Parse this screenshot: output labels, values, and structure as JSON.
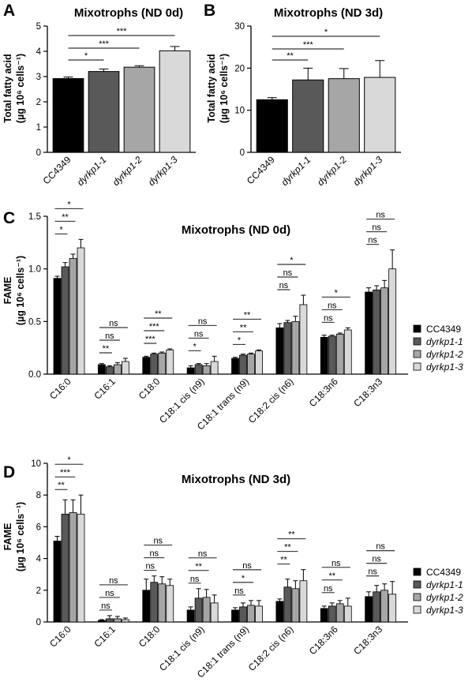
{
  "colors": {
    "CC4349": "#000000",
    "dyrkp1-1": "#595959",
    "dyrkp1-2": "#a6a6a6",
    "dyrkp1-3": "#d9d9d9"
  },
  "legend": [
    "CC4349",
    "dyrkp1-1",
    "dyrkp1-2",
    "dyrkp1-3"
  ],
  "chart_data": [
    {
      "id": "A",
      "type": "bar",
      "panel_letter": "A",
      "title": "Mixotrophs (ND 0d)",
      "ylabel_line1": "Total fatty acid",
      "ylabel_line2": "(µg 10⁶ cells⁻¹)",
      "ylim": [
        0,
        5
      ],
      "yticks": [
        0,
        1,
        2,
        3,
        4,
        5
      ],
      "categories": [
        "CC4349",
        "dyrkp1-1",
        "dyrkp1-2",
        "dyrkp1-3"
      ],
      "values": [
        2.92,
        3.2,
        3.37,
        4.02
      ],
      "errors": [
        0.06,
        0.1,
        0.06,
        0.17
      ],
      "significance": [
        {
          "vs": "dyrkp1-1",
          "label": "*"
        },
        {
          "vs": "dyrkp1-2",
          "label": "***"
        },
        {
          "vs": "dyrkp1-3",
          "label": "***"
        }
      ]
    },
    {
      "id": "B",
      "type": "bar",
      "panel_letter": "B",
      "title": "Mixotrophs (ND 3d)",
      "ylabel_line1": "Total fatty acid",
      "ylabel_line2": "(µg 10⁶ cells⁻¹)",
      "ylim": [
        0,
        30
      ],
      "yticks": [
        0,
        10,
        20,
        30
      ],
      "categories": [
        "CC4349",
        "dyrkp1-1",
        "dyrkp1-2",
        "dyrkp1-3"
      ],
      "values": [
        12.5,
        17.2,
        17.5,
        17.8
      ],
      "errors": [
        0.5,
        2.8,
        2.4,
        4.0
      ],
      "significance": [
        {
          "vs": "dyrkp1-1",
          "label": "**"
        },
        {
          "vs": "dyrkp1-2",
          "label": "***"
        },
        {
          "vs": "dyrkp1-3",
          "label": "*"
        }
      ]
    },
    {
      "id": "C",
      "type": "bar",
      "panel_letter": "C",
      "title": "Mixotrophs (ND 0d)",
      "ylabel_line1": "FAME",
      "ylabel_line2": "(µg 10⁶ cells⁻¹)",
      "ylim": [
        0,
        1.5
      ],
      "yticks": [
        "0.0",
        "0.5",
        "1.0",
        "1.5"
      ],
      "categories": [
        "C16:0",
        "C16:1",
        "C18:0",
        "C18:1 cis (n9)",
        "C18:1 trans (n9)",
        "C18:2 cis (n6)",
        "C18:3n6",
        "C18:3n3"
      ],
      "series": [
        {
          "name": "CC4349",
          "values": [
            0.91,
            0.09,
            0.16,
            0.06,
            0.15,
            0.44,
            0.35,
            0.78
          ],
          "errors": [
            0.02,
            0.01,
            0.01,
            0.02,
            0.01,
            0.04,
            0.02,
            0.04
          ]
        },
        {
          "name": "dyrkp1-1",
          "values": [
            1.02,
            0.07,
            0.19,
            0.09,
            0.18,
            0.49,
            0.36,
            0.8
          ],
          "errors": [
            0.04,
            0.01,
            0.01,
            0.01,
            0.01,
            0.02,
            0.01,
            0.04
          ]
        },
        {
          "name": "dyrkp1-2",
          "values": [
            1.1,
            0.09,
            0.2,
            0.08,
            0.19,
            0.5,
            0.38,
            0.82
          ],
          "errors": [
            0.04,
            0.02,
            0.01,
            0.02,
            0.01,
            0.05,
            0.01,
            0.07
          ]
        },
        {
          "name": "dyrkp1-3",
          "values": [
            1.2,
            0.12,
            0.23,
            0.12,
            0.22,
            0.66,
            0.42,
            1.0
          ],
          "errors": [
            0.08,
            0.03,
            0.01,
            0.05,
            0.01,
            0.09,
            0.02,
            0.18
          ]
        }
      ],
      "significance": [
        [
          "*",
          "**",
          "*"
        ],
        [
          "**",
          "ns",
          "ns"
        ],
        [
          "***",
          "***",
          "**"
        ],
        [
          "*",
          "ns",
          "ns"
        ],
        [
          "*",
          "**",
          "**"
        ],
        [
          "ns",
          "ns",
          "*"
        ],
        [
          "ns",
          "ns",
          "*"
        ],
        [
          "ns",
          "ns",
          "ns"
        ]
      ]
    },
    {
      "id": "D",
      "type": "bar",
      "panel_letter": "D",
      "title": "Mixotrophs (ND 3d)",
      "ylabel_line1": "FAME",
      "ylabel_line2": "(µg 10⁶ cells⁻¹)",
      "ylim": [
        0,
        10
      ],
      "yticks": [
        0,
        2,
        4,
        6,
        8,
        10
      ],
      "categories": [
        "C16:0",
        "C16:1",
        "C18:0",
        "C18:1 cis (n9)",
        "C18:1 trans (n9)",
        "C18:2 cis (n6)",
        "C18:3n6",
        "C18:3n3"
      ],
      "series": [
        {
          "name": "CC4349",
          "values": [
            5.1,
            0.1,
            2.0,
            0.75,
            0.75,
            1.3,
            0.85,
            1.6
          ],
          "errors": [
            0.3,
            0.05,
            0.7,
            0.2,
            0.15,
            0.15,
            0.15,
            0.3
          ]
        },
        {
          "name": "dyrkp1-1",
          "values": [
            6.8,
            0.2,
            2.5,
            1.5,
            0.95,
            2.2,
            1.0,
            1.9
          ],
          "errors": [
            0.9,
            0.2,
            0.4,
            0.6,
            0.25,
            0.5,
            0.2,
            0.4
          ]
        },
        {
          "name": "dyrkp1-2",
          "values": [
            6.9,
            0.2,
            2.4,
            1.55,
            1.05,
            2.1,
            1.15,
            2.0
          ],
          "errors": [
            0.8,
            0.15,
            0.45,
            0.5,
            0.3,
            0.5,
            0.2,
            0.4
          ]
        },
        {
          "name": "dyrkp1-3",
          "values": [
            6.8,
            0.15,
            2.3,
            1.2,
            1.0,
            2.6,
            1.0,
            1.75
          ],
          "errors": [
            1.2,
            0.1,
            0.4,
            0.5,
            0.35,
            0.7,
            0.5,
            0.8
          ]
        }
      ],
      "significance": [
        [
          "**",
          "***",
          "*"
        ],
        [
          "ns",
          "ns",
          "ns"
        ],
        [
          "ns",
          "ns",
          "ns"
        ],
        [
          "ns",
          "**",
          "ns"
        ],
        [
          "ns",
          "*",
          "ns"
        ],
        [
          "**",
          "**",
          "**"
        ],
        [
          "ns",
          "**",
          "ns"
        ],
        [
          "ns",
          "ns",
          "ns"
        ]
      ]
    }
  ]
}
